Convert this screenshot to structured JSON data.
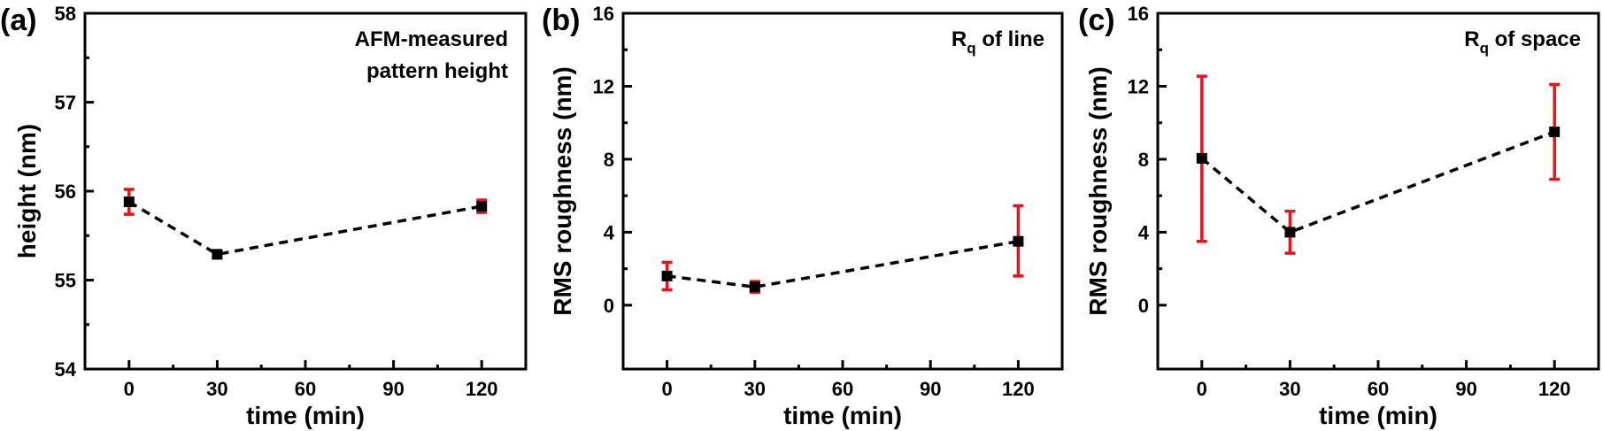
{
  "chart_data": [
    {
      "type": "scatter",
      "panel_label": "(a)",
      "annotation": [
        "AFM-measured",
        "pattern height"
      ],
      "annotation_sub": "",
      "annotation_tail": "",
      "xlabel": "time (min)",
      "ylabel": "height (nm)",
      "xlim": [
        -15,
        135
      ],
      "ylim": [
        54,
        58
      ],
      "x_ticks": [
        0,
        30,
        60,
        90,
        120
      ],
      "y_ticks": [
        54,
        55,
        56,
        57,
        58
      ],
      "grid": false,
      "line_style": "dashed",
      "errorbar_color": "#e8131b",
      "marker_color": "#000000",
      "series": [
        {
          "x": [
            0,
            30,
            120
          ],
          "y": [
            55.88,
            55.29,
            55.83
          ],
          "err_low": [
            55.74,
            55.25,
            55.76
          ],
          "err_high": [
            56.02,
            55.33,
            55.9
          ]
        }
      ]
    },
    {
      "type": "scatter",
      "panel_label": "(b)",
      "annotation": [
        "R"
      ],
      "annotation_sub": "q",
      "annotation_tail": " of line",
      "xlabel": "time (min)",
      "ylabel": "RMS roughness (nm)",
      "xlim": [
        -15,
        135
      ],
      "ylim": [
        -3.5,
        16
      ],
      "x_ticks": [
        0,
        30,
        60,
        90,
        120
      ],
      "y_ticks": [
        0,
        4,
        8,
        12,
        16
      ],
      "grid": false,
      "line_style": "dashed",
      "errorbar_color": "#e8131b",
      "marker_color": "#000000",
      "series": [
        {
          "x": [
            0,
            30,
            120
          ],
          "y": [
            1.6,
            1.0,
            3.5
          ],
          "err_low": [
            0.85,
            0.7,
            1.6
          ],
          "err_high": [
            2.35,
            1.3,
            5.45
          ]
        }
      ]
    },
    {
      "type": "scatter",
      "panel_label": "(c)",
      "annotation": [
        "R"
      ],
      "annotation_sub": "q",
      "annotation_tail": " of space",
      "xlabel": "time (min)",
      "ylabel": "RMS roughness (nm)",
      "xlim": [
        -15,
        135
      ],
      "ylim": [
        -3.5,
        16
      ],
      "x_ticks": [
        0,
        30,
        60,
        90,
        120
      ],
      "y_ticks": [
        0,
        4,
        8,
        12,
        16
      ],
      "grid": false,
      "line_style": "dashed",
      "errorbar_color": "#e8131b",
      "marker_color": "#000000",
      "series": [
        {
          "x": [
            0,
            30,
            120
          ],
          "y": [
            8.05,
            4.0,
            9.5
          ],
          "err_low": [
            3.5,
            2.85,
            6.9
          ],
          "err_high": [
            12.55,
            5.15,
            12.1
          ]
        }
      ]
    }
  ]
}
